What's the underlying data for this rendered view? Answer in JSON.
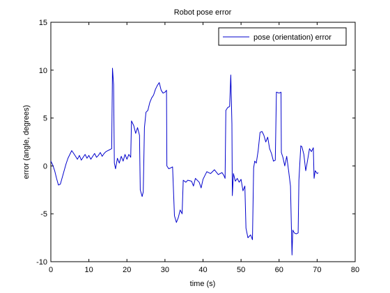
{
  "chart_data": {
    "type": "line",
    "title": "Robot pose error",
    "xlabel": "time (s)",
    "ylabel": "error (angle, degrees)",
    "xlim": [
      0,
      80
    ],
    "ylim": [
      -10,
      15
    ],
    "x_ticks": [
      0,
      10,
      20,
      30,
      40,
      50,
      60,
      70,
      80
    ],
    "y_ticks": [
      -10,
      -5,
      0,
      5,
      10,
      15
    ],
    "x_tick_labels": [
      "0",
      "10",
      "20",
      "30",
      "40",
      "50",
      "60",
      "70",
      "80"
    ],
    "y_tick_labels": [
      "-10",
      "-5",
      "0",
      "5",
      "10",
      "15"
    ],
    "grid": false,
    "legend_position": "top-right",
    "series": [
      {
        "name": "pose (orientation) error",
        "color": "#0000cc",
        "points": [
          [
            0,
            0.5
          ],
          [
            0.5,
            0.1
          ],
          [
            1,
            -0.5
          ],
          [
            1.5,
            -1.3
          ],
          [
            2,
            -2.0
          ],
          [
            2.5,
            -1.9
          ],
          [
            3,
            -1.2
          ],
          [
            3.5,
            -0.5
          ],
          [
            4,
            0.2
          ],
          [
            4.5,
            0.8
          ],
          [
            5,
            1.2
          ],
          [
            5.5,
            1.6
          ],
          [
            6,
            1.3
          ],
          [
            6.5,
            1.0
          ],
          [
            7,
            0.7
          ],
          [
            7.5,
            1.1
          ],
          [
            8,
            0.6
          ],
          [
            8.5,
            0.9
          ],
          [
            9,
            1.2
          ],
          [
            9.5,
            0.8
          ],
          [
            10,
            1.1
          ],
          [
            10.5,
            0.7
          ],
          [
            11,
            1.0
          ],
          [
            11.5,
            1.3
          ],
          [
            12,
            0.9
          ],
          [
            12.5,
            1.1
          ],
          [
            13,
            1.4
          ],
          [
            13.5,
            1.0
          ],
          [
            14,
            1.3
          ],
          [
            14.5,
            1.5
          ],
          [
            15,
            1.6
          ],
          [
            15.5,
            1.7
          ],
          [
            16,
            1.8
          ],
          [
            16.2,
            10.2
          ],
          [
            16.5,
            8.5
          ],
          [
            16.7,
            0.3
          ],
          [
            17,
            -0.3
          ],
          [
            17.5,
            0.8
          ],
          [
            18,
            0.3
          ],
          [
            18.5,
            1.0
          ],
          [
            19,
            0.5
          ],
          [
            19.5,
            1.2
          ],
          [
            20,
            0.7
          ],
          [
            20.5,
            1.2
          ],
          [
            21,
            0.9
          ],
          [
            21.2,
            4.7
          ],
          [
            21.8,
            4.2
          ],
          [
            22.3,
            3.4
          ],
          [
            22.8,
            4.0
          ],
          [
            23.3,
            3.2
          ],
          [
            23.5,
            -2.5
          ],
          [
            24,
            -3.2
          ],
          [
            24.3,
            -2.7
          ],
          [
            24.6,
            4.0
          ],
          [
            25,
            5.6
          ],
          [
            25.5,
            5.8
          ],
          [
            26,
            6.6
          ],
          [
            26.5,
            7.1
          ],
          [
            27,
            7.4
          ],
          [
            27.5,
            8.0
          ],
          [
            28,
            8.4
          ],
          [
            28.5,
            8.7
          ],
          [
            29,
            7.9
          ],
          [
            29.5,
            7.6
          ],
          [
            30,
            7.7
          ],
          [
            30.4,
            7.9
          ],
          [
            30.5,
            0
          ],
          [
            31,
            -0.3
          ],
          [
            31.5,
            -0.2
          ],
          [
            32,
            -0.1
          ],
          [
            32.5,
            -5.2
          ],
          [
            33,
            -5.9
          ],
          [
            33.5,
            -5.4
          ],
          [
            34,
            -4.6
          ],
          [
            34.5,
            -5.0
          ],
          [
            34.8,
            -1.5
          ],
          [
            35.5,
            -1.7
          ],
          [
            36,
            -1.5
          ],
          [
            37,
            -1.6
          ],
          [
            37.5,
            -2.1
          ],
          [
            38,
            -1.3
          ],
          [
            39,
            -1.7
          ],
          [
            39.5,
            -2.3
          ],
          [
            40,
            -1.4
          ],
          [
            40.5,
            -1.0
          ],
          [
            41,
            -0.6
          ],
          [
            42,
            -0.8
          ],
          [
            43,
            -0.4
          ],
          [
            44,
            -0.9
          ],
          [
            45,
            -0.7
          ],
          [
            45.5,
            -1.0
          ],
          [
            45.8,
            -1.3
          ],
          [
            46,
            5.8
          ],
          [
            46.5,
            6.1
          ],
          [
            47,
            6.2
          ],
          [
            47.3,
            9.5
          ],
          [
            47.6,
            4.4
          ],
          [
            47.7,
            -3.1
          ],
          [
            48,
            -0.8
          ],
          [
            48.5,
            -1.6
          ],
          [
            49,
            -1.3
          ],
          [
            49.5,
            -1.7
          ],
          [
            50,
            -1.4
          ],
          [
            50.5,
            -2.6
          ],
          [
            51,
            -2.1
          ],
          [
            51.3,
            -6.5
          ],
          [
            51.8,
            -7.5
          ],
          [
            52.5,
            -7.2
          ],
          [
            53,
            -7.7
          ],
          [
            53.3,
            -0.2
          ],
          [
            53.6,
            0.5
          ],
          [
            54,
            0.3
          ],
          [
            54.5,
            1.6
          ],
          [
            55,
            3.5
          ],
          [
            55.5,
            3.6
          ],
          [
            56,
            3.2
          ],
          [
            56.5,
            2.5
          ],
          [
            57,
            3.0
          ],
          [
            57.5,
            1.8
          ],
          [
            58,
            1.3
          ],
          [
            58.5,
            0.5
          ],
          [
            59,
            0.6
          ],
          [
            59.3,
            7.7
          ],
          [
            60,
            7.6
          ],
          [
            60.5,
            7.7
          ],
          [
            60.6,
            1.4
          ],
          [
            61,
            0.9
          ],
          [
            61.5,
            0.0
          ],
          [
            62,
            1.0
          ],
          [
            62.5,
            -0.5
          ],
          [
            63,
            -2.1
          ],
          [
            63.4,
            -9.3
          ],
          [
            63.6,
            -6.7
          ],
          [
            64,
            -7.0
          ],
          [
            64.5,
            -7.1
          ],
          [
            65,
            -7.0
          ],
          [
            65.2,
            -1.5
          ],
          [
            65.7,
            2.1
          ],
          [
            66,
            2.0
          ],
          [
            66.5,
            1.2
          ],
          [
            67,
            -0.5
          ],
          [
            67.4,
            0.4
          ],
          [
            68,
            1.8
          ],
          [
            68.5,
            1.5
          ],
          [
            69,
            1.9
          ],
          [
            69.2,
            -1.3
          ],
          [
            69.5,
            -0.5
          ],
          [
            70,
            -0.8
          ],
          [
            70.3,
            -0.7
          ]
        ]
      }
    ]
  }
}
